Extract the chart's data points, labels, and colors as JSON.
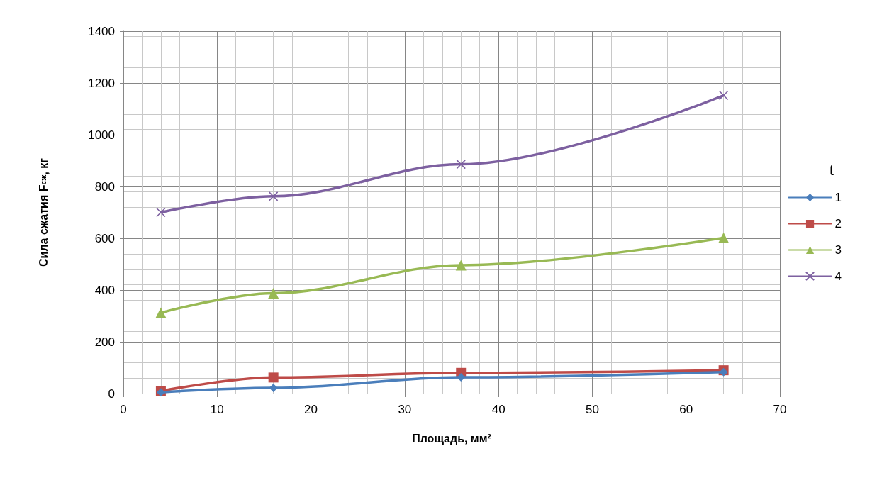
{
  "chart_data": {
    "type": "line",
    "xlabel": "Площадь, мм²",
    "ylabel": "Сила сжатия F$_{сж}$, кг",
    "legend_title": "t",
    "legend": "right",
    "grid": true,
    "xlim": [
      0,
      70
    ],
    "xticks": [
      0,
      10,
      20,
      30,
      40,
      50,
      60,
      70
    ],
    "ylim": [
      0,
      1400
    ],
    "yticks": [
      0,
      200,
      400,
      600,
      800,
      1000,
      1200,
      1400
    ],
    "x": [
      4,
      16,
      36,
      64
    ],
    "series": [
      {
        "name": "1",
        "color": "#4a7ebb",
        "marker": "diamond",
        "values": [
          5,
          22,
          63,
          83
        ]
      },
      {
        "name": "2",
        "color": "#be4b48",
        "marker": "square",
        "values": [
          10,
          62,
          80,
          90
        ]
      },
      {
        "name": "3",
        "color": "#98b954",
        "marker": "triangle",
        "values": [
          312,
          388,
          496,
          602
        ]
      },
      {
        "name": "4",
        "color": "#7d60a0",
        "marker": "cross",
        "values": [
          700,
          762,
          886,
          1152
        ]
      }
    ]
  }
}
